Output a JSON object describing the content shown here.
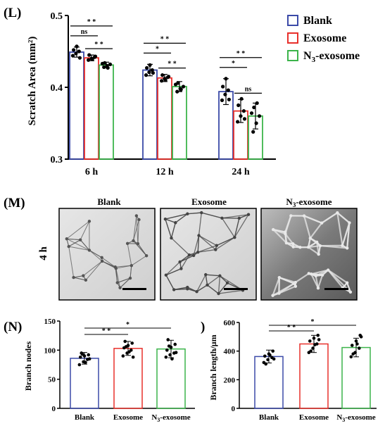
{
  "colors": {
    "Blank": "#3b4aa8",
    "Exosome": "#e8302b",
    "N3-exosome": "#3cb44b",
    "axis": "#000000",
    "point": "#000000"
  },
  "legend": [
    "Blank",
    "Exosome",
    "N3-exosome"
  ],
  "panel_L": {
    "label": "(L)",
    "ylabel": "Scratch  Area (mm²)",
    "yticks": [
      "0.3",
      "0.4",
      "0.5"
    ],
    "significance": {
      "6 h": [
        {
          "pair": "Blank-Exosome",
          "text": "ns"
        },
        {
          "pair": "Blank-N3-exosome",
          "text": "* *"
        },
        {
          "pair": "Exosome-N3-exosome",
          "text": "* *"
        }
      ],
      "12 h": [
        {
          "pair": "Blank-Exosome",
          "text": "*"
        },
        {
          "pair": "Blank-N3-exosome",
          "text": "* *"
        },
        {
          "pair": "Exosome-N3-exosome",
          "text": "* *"
        }
      ],
      "24 h": [
        {
          "pair": "Blank-Exosome",
          "text": "*"
        },
        {
          "pair": "Blank-N3-exosome",
          "text": "* *"
        },
        {
          "pair": "Exosome-N3-exosome",
          "text": "ns"
        }
      ]
    }
  },
  "panel_M": {
    "label": "(M)",
    "row_label": "4 h",
    "image_titles": [
      "Blank",
      "Exosome",
      "N3-exosome"
    ]
  },
  "panel_N": {
    "label": "(N)",
    "ylabel": "Branch nodes",
    "yticks": [
      "0",
      "50",
      "100",
      "150"
    ],
    "categories": [
      "Blank",
      "Exosome",
      "N3-exosome"
    ],
    "significance": [
      {
        "pair": "Blank-Exosome",
        "text": "* *"
      },
      {
        "pair": "Blank-N3-exosome",
        "text": "*"
      }
    ]
  },
  "panel_O": {
    "label": ")",
    "ylabel": "Branch length/μm",
    "yticks": [
      "0",
      "200",
      "400",
      "600"
    ],
    "categories": [
      "Blank",
      "Exosome",
      "N3-exosome"
    ],
    "significance": [
      {
        "pair": "Blank-Exosome",
        "text": "* *"
      },
      {
        "pair": "Blank-N3-exosome",
        "text": "*"
      }
    ]
  },
  "chart_data": [
    {
      "type": "bar",
      "panel": "L",
      "ylabel": "Scratch  Area (mm²)",
      "categories": [
        "6 h",
        "12 h",
        "24 h"
      ],
      "ylim": [
        0.3,
        0.5
      ],
      "series": [
        {
          "name": "Blank",
          "values": [
            0.449,
            0.424,
            0.394
          ],
          "err": [
            0.007,
            0.008,
            0.018
          ],
          "points": [
            [
              0.444,
              0.447,
              0.45,
              0.452,
              0.457,
              0.441
            ],
            [
              0.417,
              0.421,
              0.424,
              0.427,
              0.431,
              0.42
            ],
            [
              0.382,
              0.39,
              0.396,
              0.401,
              0.412,
              0.383
            ]
          ]
        },
        {
          "name": "Exosome",
          "values": [
            0.441,
            0.413,
            0.367
          ],
          "err": [
            0.004,
            0.005,
            0.016
          ],
          "points": [
            [
              0.438,
              0.44,
              0.442,
              0.445,
              0.439,
              0.443
            ],
            [
              0.409,
              0.412,
              0.414,
              0.417,
              0.41,
              0.415
            ],
            [
              0.352,
              0.36,
              0.367,
              0.375,
              0.384,
              0.356
            ]
          ]
        },
        {
          "name": "N3-exosome",
          "values": [
            0.431,
            0.401,
            0.36
          ],
          "err": [
            0.004,
            0.007,
            0.018
          ],
          "points": [
            [
              0.428,
              0.43,
              0.432,
              0.434,
              0.427,
              0.433
            ],
            [
              0.394,
              0.398,
              0.401,
              0.406,
              0.397,
              0.404
            ],
            [
              0.338,
              0.35,
              0.36,
              0.372,
              0.378,
              0.364
            ]
          ]
        }
      ]
    },
    {
      "type": "bar",
      "panel": "N",
      "ylabel": "Branch nodes",
      "categories": [
        "Blank",
        "Exosome",
        "N3-exosome"
      ],
      "ylim": [
        0,
        150
      ],
      "values": [
        86,
        103,
        102
      ],
      "err": [
        10,
        12,
        15
      ],
      "points": [
        [
          75,
          80,
          84,
          88,
          90,
          92,
          95,
          79,
          85,
          93
        ],
        [
          90,
          95,
          100,
          104,
          108,
          112,
          115,
          97,
          88,
          106
        ],
        [
          88,
          92,
          95,
          100,
          105,
          110,
          118,
          85,
          96,
          107
        ]
      ]
    },
    {
      "type": "bar",
      "panel": "O",
      "ylabel": "Branch length/μm",
      "categories": [
        "Blank",
        "Exosome",
        "N3-exosome"
      ],
      "ylim": [
        0,
        600
      ],
      "values": [
        362,
        450,
        425
      ],
      "err": [
        45,
        60,
        65
      ],
      "points": [
        [
          320,
          340,
          355,
          365,
          380,
          400,
          310,
          372,
          345
        ],
        [
          390,
          420,
          450,
          470,
          490,
          510,
          400,
          445,
          480
        ],
        [
          360,
          390,
          420,
          440,
          470,
          510,
          380,
          450,
          500
        ]
      ]
    }
  ]
}
